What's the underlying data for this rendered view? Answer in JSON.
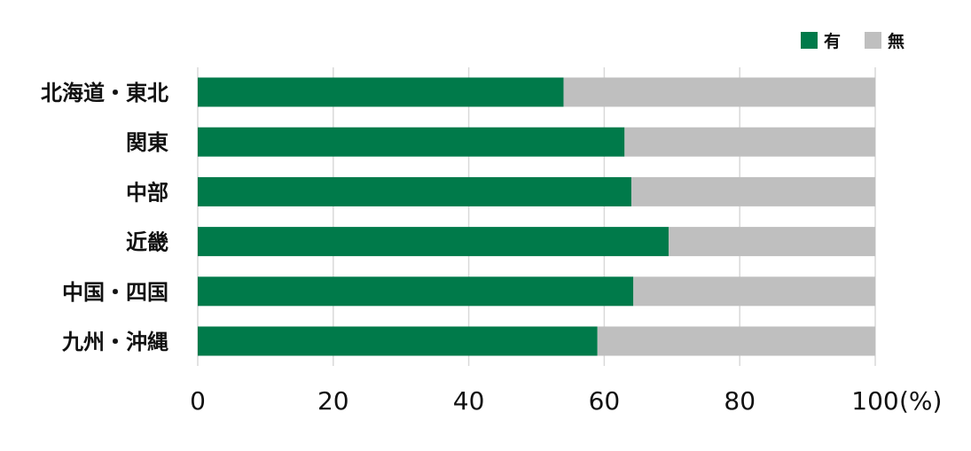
{
  "chart_data": {
    "type": "bar",
    "orientation": "horizontal",
    "stacked": true,
    "categories": [
      "北海道・東北",
      "関東",
      "中部",
      "近畿",
      "中国・四国",
      "九州・沖縄"
    ],
    "series": [
      {
        "name": "有",
        "color": "#007a4a",
        "values": [
          54,
          63,
          64,
          69.5,
          64.3,
          59
        ]
      },
      {
        "name": "無",
        "color": "#bfbfbf",
        "values": [
          46,
          37,
          36,
          30.5,
          35.7,
          41
        ]
      }
    ],
    "xlim": [
      0,
      100
    ],
    "xticks": [
      0,
      20,
      40,
      60,
      80,
      100
    ],
    "xtick_labels": [
      "0",
      "20",
      "40",
      "60",
      "80",
      "100"
    ],
    "xunit": "(%)",
    "grid": true,
    "legend_position": "top-right"
  }
}
